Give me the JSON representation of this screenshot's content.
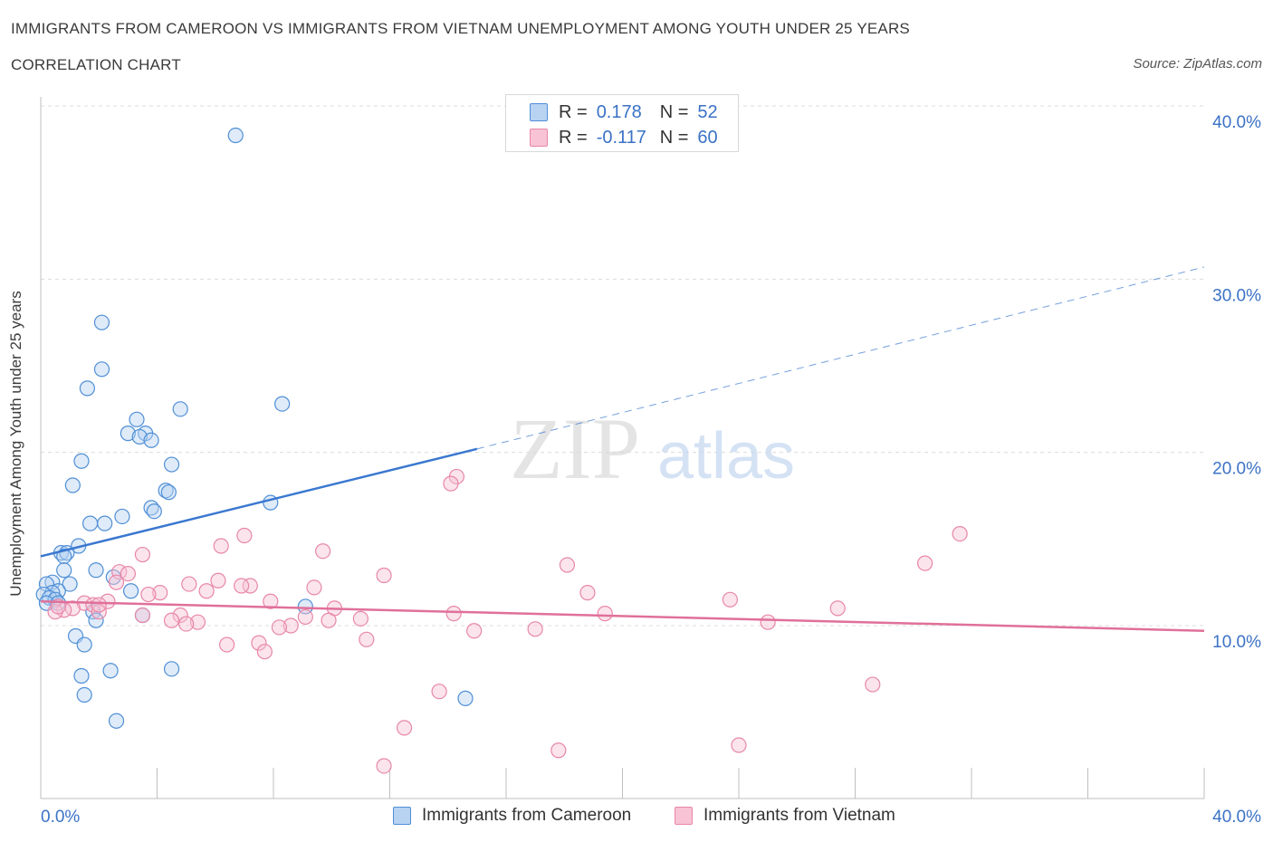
{
  "header": {
    "title": "IMMIGRANTS FROM CAMEROON VS IMMIGRANTS FROM VIETNAM UNEMPLOYMENT AMONG YOUTH UNDER 25 YEARS",
    "subtitle": "CORRELATION CHART",
    "source": "Source: ZipAtlas.com"
  },
  "legend_top": {
    "rows": [
      {
        "r_label": "R =",
        "r_value": "0.178",
        "n_label": "N =",
        "n_value": "52"
      },
      {
        "r_label": "R =",
        "r_value": "-0.117",
        "n_label": "N =",
        "n_value": "60"
      }
    ]
  },
  "colors": {
    "cameroon_fill": "#b8d2f2",
    "cameroon_stroke": "#4f8fd6",
    "cameroon_line": "#3a78d0",
    "vietnam_fill": "#f7c3d5",
    "vietnam_stroke": "#e887a8",
    "vietnam_line": "#e0709a",
    "grid": "#dcdcdc",
    "tick_text": "#3b72c6"
  },
  "watermark": {
    "zip": "ZIP",
    "atlas": "atlas"
  },
  "chart_data": {
    "type": "scatter",
    "ylabel": "Unemployment Among Youth under 25 years",
    "xlim": [
      0,
      40
    ],
    "ylim": [
      0,
      40
    ],
    "x_tick_labels": [
      "0.0%",
      "40.0%"
    ],
    "y_ticks": [
      10,
      20,
      30,
      40
    ],
    "y_tick_labels": [
      "10.0%",
      "20.0%",
      "30.0%",
      "40.0%"
    ],
    "grid": true,
    "legend_position": "bottom",
    "series": [
      {
        "name": "Immigrants from Cameroon",
        "color": "#4f8fd6",
        "points": [
          [
            6.7,
            38.3
          ],
          [
            2.1,
            27.5
          ],
          [
            2.1,
            24.8
          ],
          [
            1.6,
            23.7
          ],
          [
            8.3,
            22.8
          ],
          [
            4.8,
            22.5
          ],
          [
            3.3,
            21.9
          ],
          [
            3.0,
            21.1
          ],
          [
            3.6,
            21.1
          ],
          [
            3.4,
            20.9
          ],
          [
            3.8,
            20.7
          ],
          [
            1.4,
            19.5
          ],
          [
            4.5,
            19.3
          ],
          [
            1.1,
            18.1
          ],
          [
            4.3,
            17.8
          ],
          [
            4.4,
            17.7
          ],
          [
            7.9,
            17.1
          ],
          [
            3.8,
            16.8
          ],
          [
            3.9,
            16.6
          ],
          [
            2.8,
            16.3
          ],
          [
            1.7,
            15.9
          ],
          [
            2.2,
            15.9
          ],
          [
            1.3,
            14.6
          ],
          [
            0.7,
            14.2
          ],
          [
            0.9,
            14.2
          ],
          [
            0.8,
            14.0
          ],
          [
            0.8,
            13.2
          ],
          [
            1.9,
            13.2
          ],
          [
            2.5,
            12.8
          ],
          [
            0.4,
            12.5
          ],
          [
            0.2,
            12.4
          ],
          [
            1.0,
            12.4
          ],
          [
            3.1,
            12.0
          ],
          [
            0.6,
            12.0
          ],
          [
            0.4,
            11.9
          ],
          [
            0.1,
            11.8
          ],
          [
            0.3,
            11.6
          ],
          [
            0.5,
            11.5
          ],
          [
            0.2,
            11.3
          ],
          [
            0.6,
            11.3
          ],
          [
            9.1,
            11.1
          ],
          [
            1.8,
            10.8
          ],
          [
            3.5,
            10.6
          ],
          [
            1.9,
            10.3
          ],
          [
            1.2,
            9.4
          ],
          [
            1.5,
            8.9
          ],
          [
            4.5,
            7.5
          ],
          [
            2.4,
            7.4
          ],
          [
            1.4,
            7.1
          ],
          [
            1.5,
            6.0
          ],
          [
            14.6,
            5.8
          ],
          [
            2.6,
            4.5
          ]
        ]
      },
      {
        "name": "Immigrants from Vietnam",
        "color": "#e887a8",
        "points": [
          [
            14.3,
            18.6
          ],
          [
            14.1,
            18.2
          ],
          [
            31.6,
            15.3
          ],
          [
            7.0,
            15.2
          ],
          [
            6.2,
            14.6
          ],
          [
            9.7,
            14.3
          ],
          [
            3.5,
            14.1
          ],
          [
            30.4,
            13.6
          ],
          [
            18.1,
            13.5
          ],
          [
            11.8,
            12.9
          ],
          [
            2.7,
            13.1
          ],
          [
            6.1,
            12.6
          ],
          [
            5.1,
            12.4
          ],
          [
            2.6,
            12.5
          ],
          [
            7.2,
            12.3
          ],
          [
            6.9,
            12.3
          ],
          [
            9.4,
            12.2
          ],
          [
            5.7,
            12.0
          ],
          [
            18.8,
            11.9
          ],
          [
            4.1,
            11.9
          ],
          [
            3.7,
            11.8
          ],
          [
            23.7,
            11.5
          ],
          [
            7.9,
            11.4
          ],
          [
            2.3,
            11.4
          ],
          [
            1.5,
            11.3
          ],
          [
            1.8,
            11.2
          ],
          [
            1.1,
            11.0
          ],
          [
            10.1,
            11.0
          ],
          [
            27.4,
            11.0
          ],
          [
            19.4,
            10.7
          ],
          [
            14.2,
            10.7
          ],
          [
            0.8,
            10.9
          ],
          [
            4.8,
            10.6
          ],
          [
            2.0,
            10.8
          ],
          [
            0.5,
            10.8
          ],
          [
            3.5,
            10.6
          ],
          [
            9.1,
            10.5
          ],
          [
            4.5,
            10.3
          ],
          [
            11.0,
            10.4
          ],
          [
            5.4,
            10.2
          ],
          [
            9.9,
            10.3
          ],
          [
            25.0,
            10.2
          ],
          [
            8.6,
            10.0
          ],
          [
            5.0,
            10.1
          ],
          [
            8.2,
            9.9
          ],
          [
            17.0,
            9.8
          ],
          [
            14.9,
            9.7
          ],
          [
            11.2,
            9.2
          ],
          [
            7.5,
            9.0
          ],
          [
            6.4,
            8.9
          ],
          [
            7.7,
            8.5
          ],
          [
            28.6,
            6.6
          ],
          [
            13.7,
            6.2
          ],
          [
            12.5,
            4.1
          ],
          [
            17.8,
            2.8
          ],
          [
            24.0,
            3.1
          ],
          [
            11.8,
            1.9
          ],
          [
            3.0,
            13.0
          ],
          [
            2.0,
            11.2
          ],
          [
            0.6,
            11.1
          ]
        ]
      }
    ],
    "trendlines": [
      {
        "series": "Immigrants from Cameroon",
        "x1": 0,
        "y1": 14.0,
        "x2": 15.0,
        "y2": 20.2,
        "dashed_to_x": 40,
        "dashed_to_y": 30.7
      },
      {
        "series": "Immigrants from Vietnam",
        "x1": 0,
        "y1": 11.4,
        "x2": 40,
        "y2": 9.7
      }
    ]
  }
}
